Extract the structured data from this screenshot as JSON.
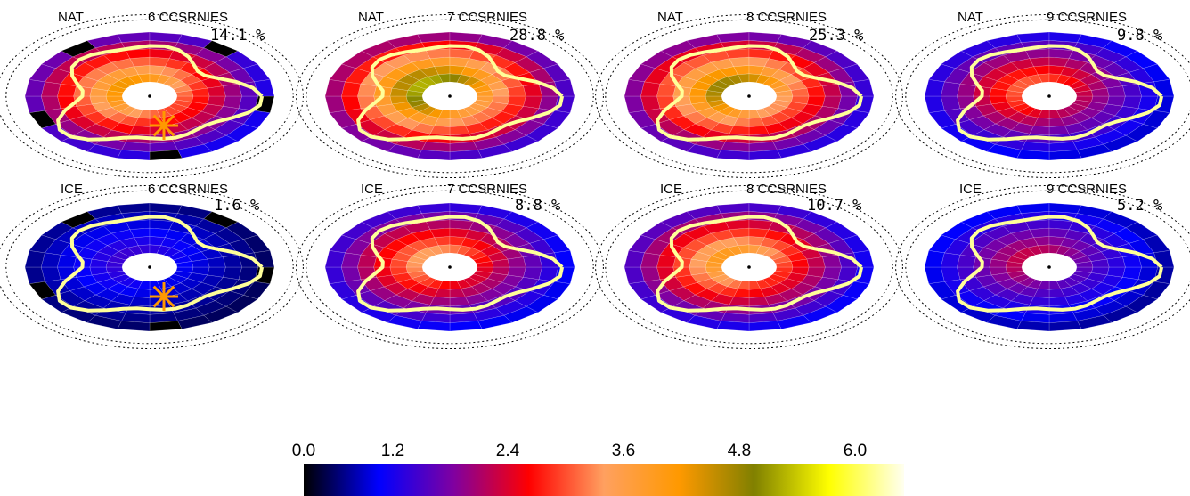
{
  "panels": [
    {
      "type": "NAT",
      "title": "6 CCSRNIES",
      "pct": "14.1 %",
      "intensity": 0.55,
      "peak": 0.5,
      "dark_boxes": true,
      "marker": true
    },
    {
      "type": "NAT",
      "title": "7 CCSRNIES",
      "pct": "28.8 %",
      "intensity": 0.7,
      "peak": 0.6,
      "dark_boxes": false,
      "marker": false
    },
    {
      "type": "NAT",
      "title": "8 CCSRNIES",
      "pct": "25.3 %",
      "intensity": 0.62,
      "peak": 0.6,
      "dark_boxes": false,
      "marker": false
    },
    {
      "type": "NAT",
      "title": "9 CCSRNIES",
      "pct": "9.8 %",
      "intensity": 0.4,
      "peak": 0.3,
      "dark_boxes": false,
      "marker": false
    },
    {
      "type": "ICE",
      "title": "6 CCSRNIES",
      "pct": "1.6 %",
      "intensity": 0.18,
      "peak": 0.05,
      "dark_boxes": true,
      "marker": true
    },
    {
      "type": "ICE",
      "title": "7 CCSRNIES",
      "pct": "8.8 %",
      "intensity": 0.45,
      "peak": 0.35,
      "dark_boxes": false,
      "marker": false
    },
    {
      "type": "ICE",
      "title": "8 CCSRNIES",
      "pct": "10.7 %",
      "intensity": 0.5,
      "peak": 0.5,
      "dark_boxes": false,
      "marker": false
    },
    {
      "type": "ICE",
      "title": "9 CCSRNIES",
      "pct": "5.2 %",
      "intensity": 0.3,
      "peak": 0.15,
      "dark_boxes": false,
      "marker": false
    }
  ],
  "colorbar": {
    "ticks": [
      "0.0",
      "1.2",
      "2.4",
      "3.6",
      "4.8",
      "6.0"
    ],
    "tick_values": [
      0.0,
      1.2,
      2.4,
      3.6,
      4.8,
      6.0
    ],
    "range": [
      0.0,
      6.4
    ],
    "stops": [
      "#000000",
      "#0000ff",
      "#8000a0",
      "#ff0000",
      "#ffa060",
      "#ff9900",
      "#808000",
      "#ffff00",
      "#fffff0"
    ]
  },
  "colors": {
    "coastline": "#ffff99",
    "marker": "#ff9900",
    "grid": "#000000"
  }
}
